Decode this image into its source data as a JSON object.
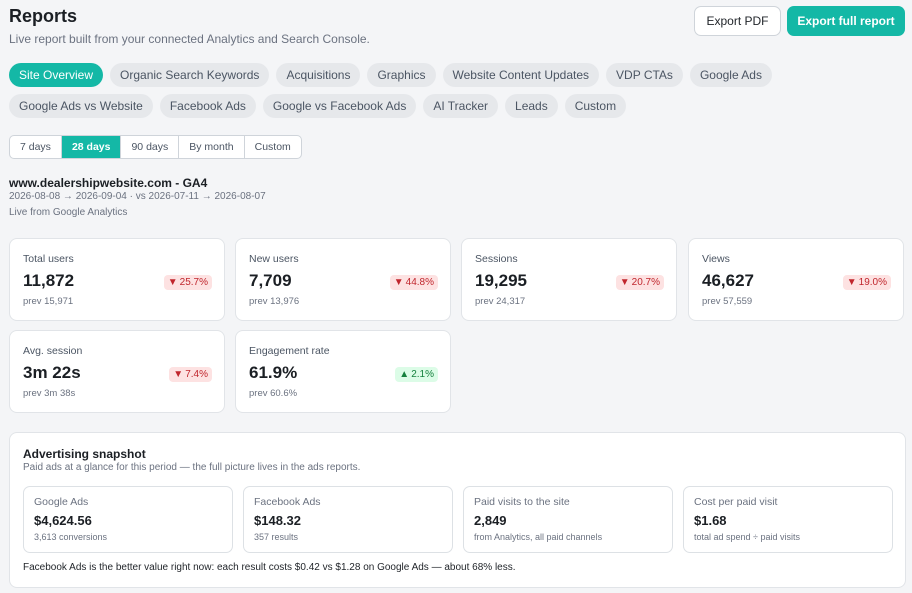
{
  "header": {
    "title": "Reports",
    "subtitle": "Live report built from your connected Analytics and Search Console.",
    "export_pdf_label": "Export PDF",
    "export_full_label": "Export full report"
  },
  "tabs": [
    {
      "label": "Site Overview",
      "active": true
    },
    {
      "label": "Organic Search Keywords"
    },
    {
      "label": "Acquisitions"
    },
    {
      "label": "Graphics"
    },
    {
      "label": "Website Content Updates"
    },
    {
      "label": "VDP CTAs"
    },
    {
      "label": "Google Ads"
    },
    {
      "label": "Google Ads vs Website"
    },
    {
      "label": "Facebook Ads"
    },
    {
      "label": "Google vs Facebook Ads"
    },
    {
      "label": "AI Tracker"
    },
    {
      "label": "Leads"
    },
    {
      "label": "Custom"
    }
  ],
  "range": [
    {
      "label": "7 days"
    },
    {
      "label": "28 days",
      "active": true
    },
    {
      "label": "90 days"
    },
    {
      "label": "By month"
    },
    {
      "label": "Custom"
    }
  ],
  "site": {
    "name": "www.dealershipwebsite.com - GA4",
    "dates": "2026-08-08 → 2026-09-04 · vs 2026-07-11 → 2026-08-07",
    "live": "Live from Google Analytics"
  },
  "metrics": [
    {
      "label": "Total users",
      "value": "11,872",
      "change": "25.7%",
      "direction": "down",
      "prev": "prev 15,971"
    },
    {
      "label": "New users",
      "value": "7,709",
      "change": "44.8%",
      "direction": "down",
      "prev": "prev 13,976"
    },
    {
      "label": "Sessions",
      "value": "19,295",
      "change": "20.7%",
      "direction": "down",
      "prev": "prev 24,317"
    },
    {
      "label": "Views",
      "value": "46,627",
      "change": "19.0%",
      "direction": "down",
      "prev": "prev 57,559"
    },
    {
      "label": "Avg. session",
      "value": "3m 22s",
      "change": "7.4%",
      "direction": "down",
      "prev": "prev 3m 38s"
    },
    {
      "label": "Engagement rate",
      "value": "61.9%",
      "change": "2.1%",
      "direction": "up",
      "prev": "prev 60.6%"
    }
  ],
  "advertising": {
    "title": "Advertising snapshot",
    "subtitle": "Paid ads at a glance for this period — the full picture lives in the ads reports.",
    "cards": [
      {
        "label": "Google Ads",
        "value": "$4,624.56",
        "note": "3,613 conversions"
      },
      {
        "label": "Facebook Ads",
        "value": "$148.32",
        "note": "357 results"
      },
      {
        "label": "Paid visits to the site",
        "value": "2,849",
        "note": "from Analytics, all paid channels"
      },
      {
        "label": "Cost per paid visit",
        "value": "$1.68",
        "note": "total ad spend ÷ paid visits"
      }
    ],
    "footer": "Facebook Ads is the better value right now: each result costs $0.42 vs $1.28 on Google Ads — about 68% less."
  },
  "colors": {
    "accent": "#14b8a6",
    "down": "#c0262d",
    "up": "#15803d"
  }
}
